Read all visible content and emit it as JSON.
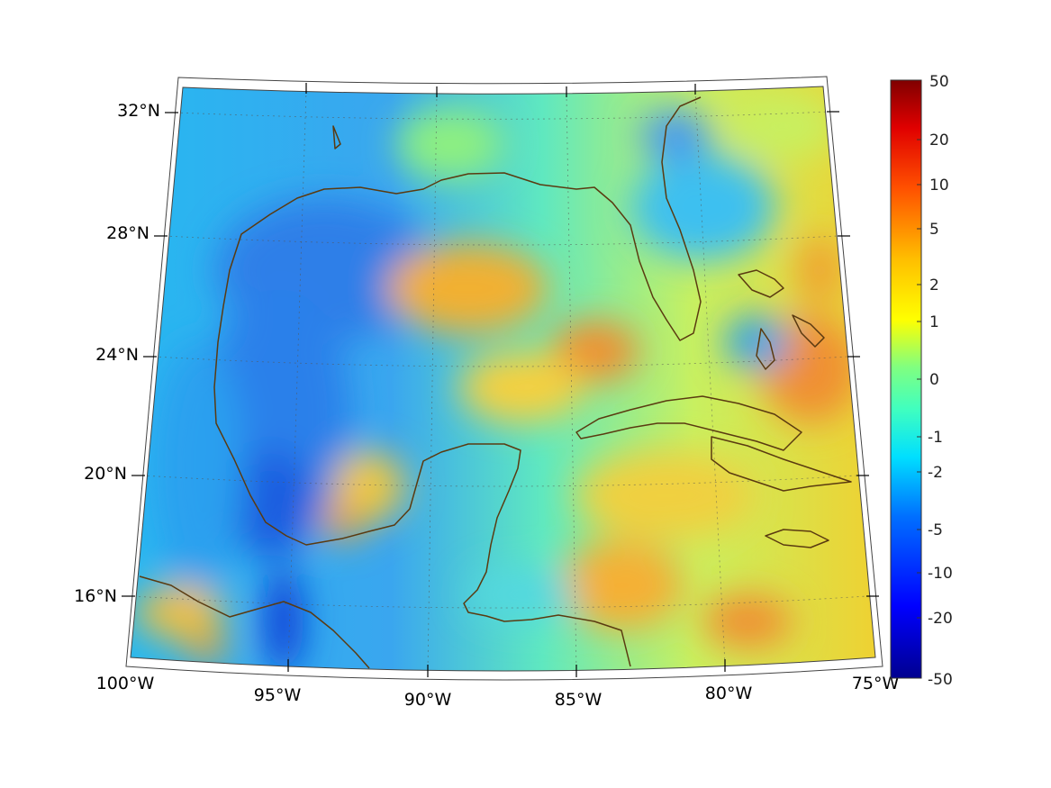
{
  "map": {
    "lon_labels": [
      {
        "lon": -100,
        "text": "100°W"
      },
      {
        "lon": -95,
        "text": "95°W"
      },
      {
        "lon": -90,
        "text": "90°W"
      },
      {
        "lon": -85,
        "text": "85°W"
      },
      {
        "lon": -80,
        "text": "80°W"
      },
      {
        "lon": -75,
        "text": "75°W"
      }
    ],
    "lat_labels": [
      {
        "lat": 32,
        "text": "32°N"
      },
      {
        "lat": 28,
        "text": "28°N"
      },
      {
        "lat": 24,
        "text": "24°N"
      },
      {
        "lat": 20,
        "text": "20°N"
      },
      {
        "lat": 16,
        "text": "16°N"
      }
    ],
    "extent": {
      "lon_min": -100,
      "lon_max": -75,
      "lat_min": 14,
      "lat_max": 33
    }
  },
  "colorbar": {
    "ticks": [
      "50",
      "20",
      "10",
      "5",
      "2",
      "1",
      "0",
      "-1",
      "-2",
      "-5",
      "-10",
      "-20",
      "-50"
    ],
    "colors": {
      "max": "#800000",
      "mid": "#80ff80",
      "min": "#000080"
    }
  }
}
